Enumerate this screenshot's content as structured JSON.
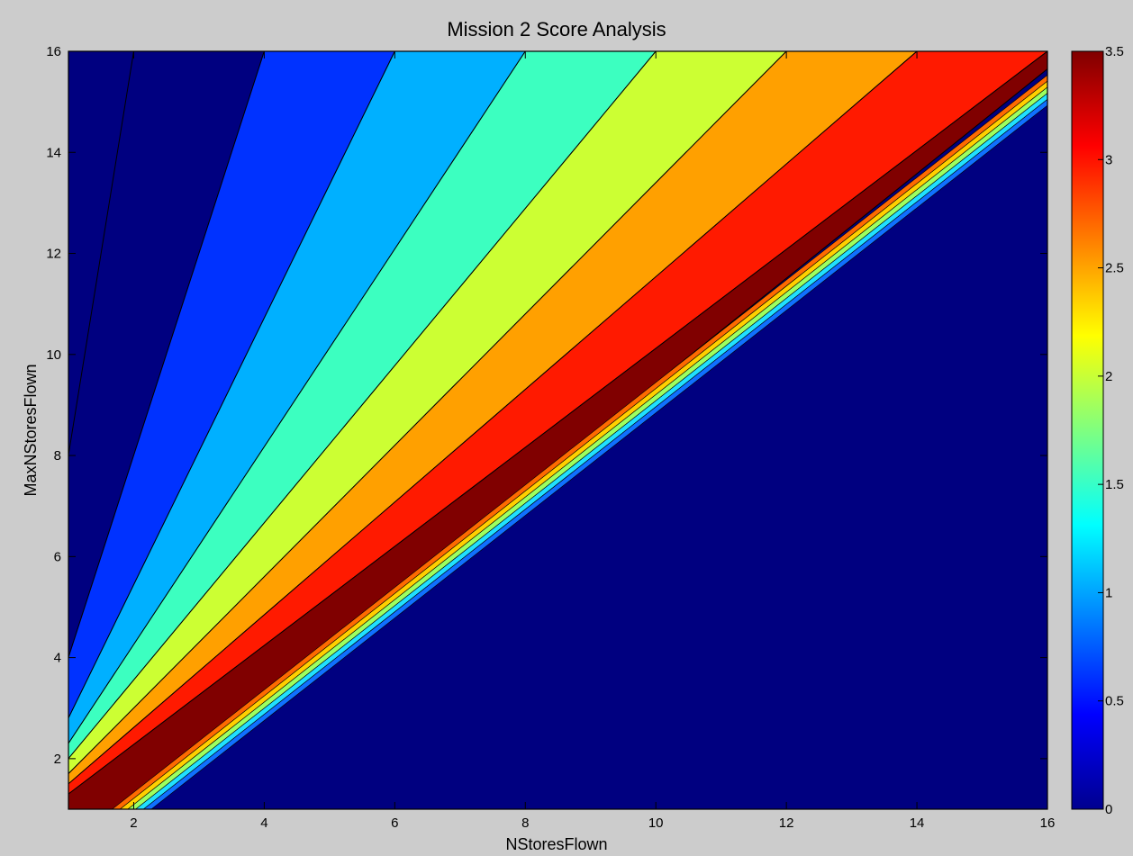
{
  "chart_data": {
    "type": "contourf",
    "title": "Mission 2 Score Analysis",
    "xlabel": "NStoresFlown",
    "ylabel": "MaxNStoresFlown",
    "xlim": [
      1,
      16
    ],
    "ylim": [
      1,
      16
    ],
    "x_ticks": [
      2,
      4,
      6,
      8,
      10,
      12,
      14,
      16
    ],
    "y_ticks": [
      2,
      4,
      6,
      8,
      10,
      12,
      14,
      16
    ],
    "colorbar": {
      "range": [
        0,
        3.5
      ],
      "ticks": [
        0,
        0.5,
        1,
        1.5,
        2,
        2.5,
        3,
        3.5
      ],
      "colormap": "jet"
    },
    "contour_levels": [
      {
        "value": 0.0,
        "color": "#000080",
        "top_edge_x_at_y16": 2.0,
        "left_edge_y_at_x1": 8.0
      },
      {
        "value": 0.5,
        "color": "#0032ff",
        "top_edge_x_at_y16": 4.0,
        "left_edge_y_at_x1": 4.0
      },
      {
        "value": 1.0,
        "color": "#00b0ff",
        "top_edge_x_at_y16": 6.0,
        "left_edge_y_at_x1": 2.8
      },
      {
        "value": 1.5,
        "color": "#3cffc0",
        "top_edge_x_at_y16": 8.0,
        "left_edge_y_at_x1": 2.3
      },
      {
        "value": 2.0,
        "color": "#ccff33",
        "top_edge_x_at_y16": 10.0,
        "left_edge_y_at_x1": 2.0
      },
      {
        "value": 2.5,
        "color": "#ffa000",
        "top_edge_x_at_y16": 12.0,
        "left_edge_y_at_x1": 1.7
      },
      {
        "value": 3.0,
        "color": "#ff1a00",
        "top_edge_x_at_y16": 14.0,
        "left_edge_y_at_x1": 1.5
      },
      {
        "value": 3.5,
        "color": "#800000",
        "top_edge_x_at_y16": 16.0,
        "left_edge_y_at_x1": 1.3
      }
    ],
    "zero_region": "below line NStoresFlown = MaxNStoresFlown"
  }
}
